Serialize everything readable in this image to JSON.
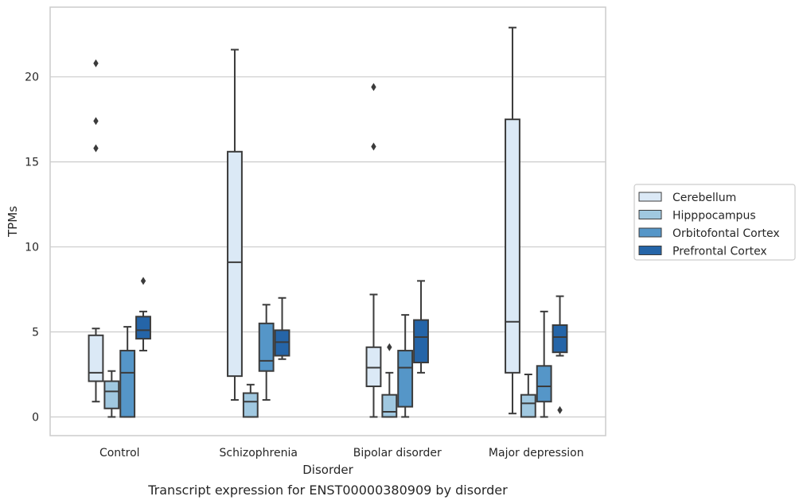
{
  "chart_data": {
    "type": "box",
    "title": "",
    "caption": "Transcript expression for ENST00000380909 by disorder",
    "xlabel": "Disorder",
    "ylabel": "TPMs",
    "ylim": [
      -1.1,
      24.1
    ],
    "yticks": [
      0,
      5,
      10,
      15,
      20
    ],
    "grid": "horizontal",
    "legend_position": "outside right",
    "categories": [
      "Control",
      "Schizophrenia",
      "Bipolar disorder",
      "Major depression"
    ],
    "series": [
      {
        "name": "Cerebellum",
        "color": "#dbe9f6",
        "boxes": [
          {
            "whisker_low": 0.9,
            "q1": 2.1,
            "median": 2.6,
            "q3": 4.8,
            "whisker_high": 5.2,
            "outliers": [
              15.8,
              17.4,
              20.8
            ]
          },
          {
            "whisker_low": 1.0,
            "q1": 2.4,
            "median": 9.1,
            "q3": 15.6,
            "whisker_high": 21.6,
            "outliers": []
          },
          {
            "whisker_low": 0.0,
            "q1": 1.8,
            "median": 2.9,
            "q3": 4.1,
            "whisker_high": 7.2,
            "outliers": [
              15.9,
              19.4
            ]
          },
          {
            "whisker_low": 0.2,
            "q1": 2.6,
            "median": 5.6,
            "q3": 17.5,
            "whisker_high": 22.9,
            "outliers": []
          }
        ]
      },
      {
        "name": "Hipppocampus",
        "color": "#a0c8e0",
        "boxes": [
          {
            "whisker_low": 0.0,
            "q1": 0.5,
            "median": 1.5,
            "q3": 2.1,
            "whisker_high": 2.7,
            "outliers": []
          },
          {
            "whisker_low": 0.0,
            "q1": 0.0,
            "median": 0.9,
            "q3": 1.4,
            "whisker_high": 1.9,
            "outliers": []
          },
          {
            "whisker_low": 0.0,
            "q1": 0.0,
            "median": 0.3,
            "q3": 1.3,
            "whisker_high": 2.6,
            "outliers": [
              4.1
            ]
          },
          {
            "whisker_low": 0.0,
            "q1": 0.0,
            "median": 0.8,
            "q3": 1.3,
            "whisker_high": 2.5,
            "outliers": []
          }
        ]
      },
      {
        "name": "Orbitofontal Cortex",
        "color": "#5596c8",
        "boxes": [
          {
            "whisker_low": 0.0,
            "q1": 0.0,
            "median": 2.6,
            "q3": 3.9,
            "whisker_high": 5.3,
            "outliers": []
          },
          {
            "whisker_low": 1.0,
            "q1": 2.7,
            "median": 3.3,
            "q3": 5.5,
            "whisker_high": 6.6,
            "outliers": []
          },
          {
            "whisker_low": 0.0,
            "q1": 0.6,
            "median": 2.9,
            "q3": 3.9,
            "whisker_high": 6.0,
            "outliers": []
          },
          {
            "whisker_low": 0.0,
            "q1": 0.9,
            "median": 1.8,
            "q3": 3.0,
            "whisker_high": 6.2,
            "outliers": []
          }
        ]
      },
      {
        "name": "Prefrontal Cortex",
        "color": "#2565a8",
        "boxes": [
          {
            "whisker_low": 3.9,
            "q1": 4.6,
            "median": 5.1,
            "q3": 5.9,
            "whisker_high": 6.2,
            "outliers": [
              8.0
            ]
          },
          {
            "whisker_low": 3.4,
            "q1": 3.6,
            "median": 4.4,
            "q3": 5.1,
            "whisker_high": 7.0,
            "outliers": []
          },
          {
            "whisker_low": 2.6,
            "q1": 3.2,
            "median": 4.7,
            "q3": 5.7,
            "whisker_high": 8.0,
            "outliers": []
          },
          {
            "whisker_low": 3.6,
            "q1": 3.8,
            "median": 4.7,
            "q3": 5.4,
            "whisker_high": 7.1,
            "outliers": [
              0.4
            ]
          }
        ]
      }
    ]
  }
}
